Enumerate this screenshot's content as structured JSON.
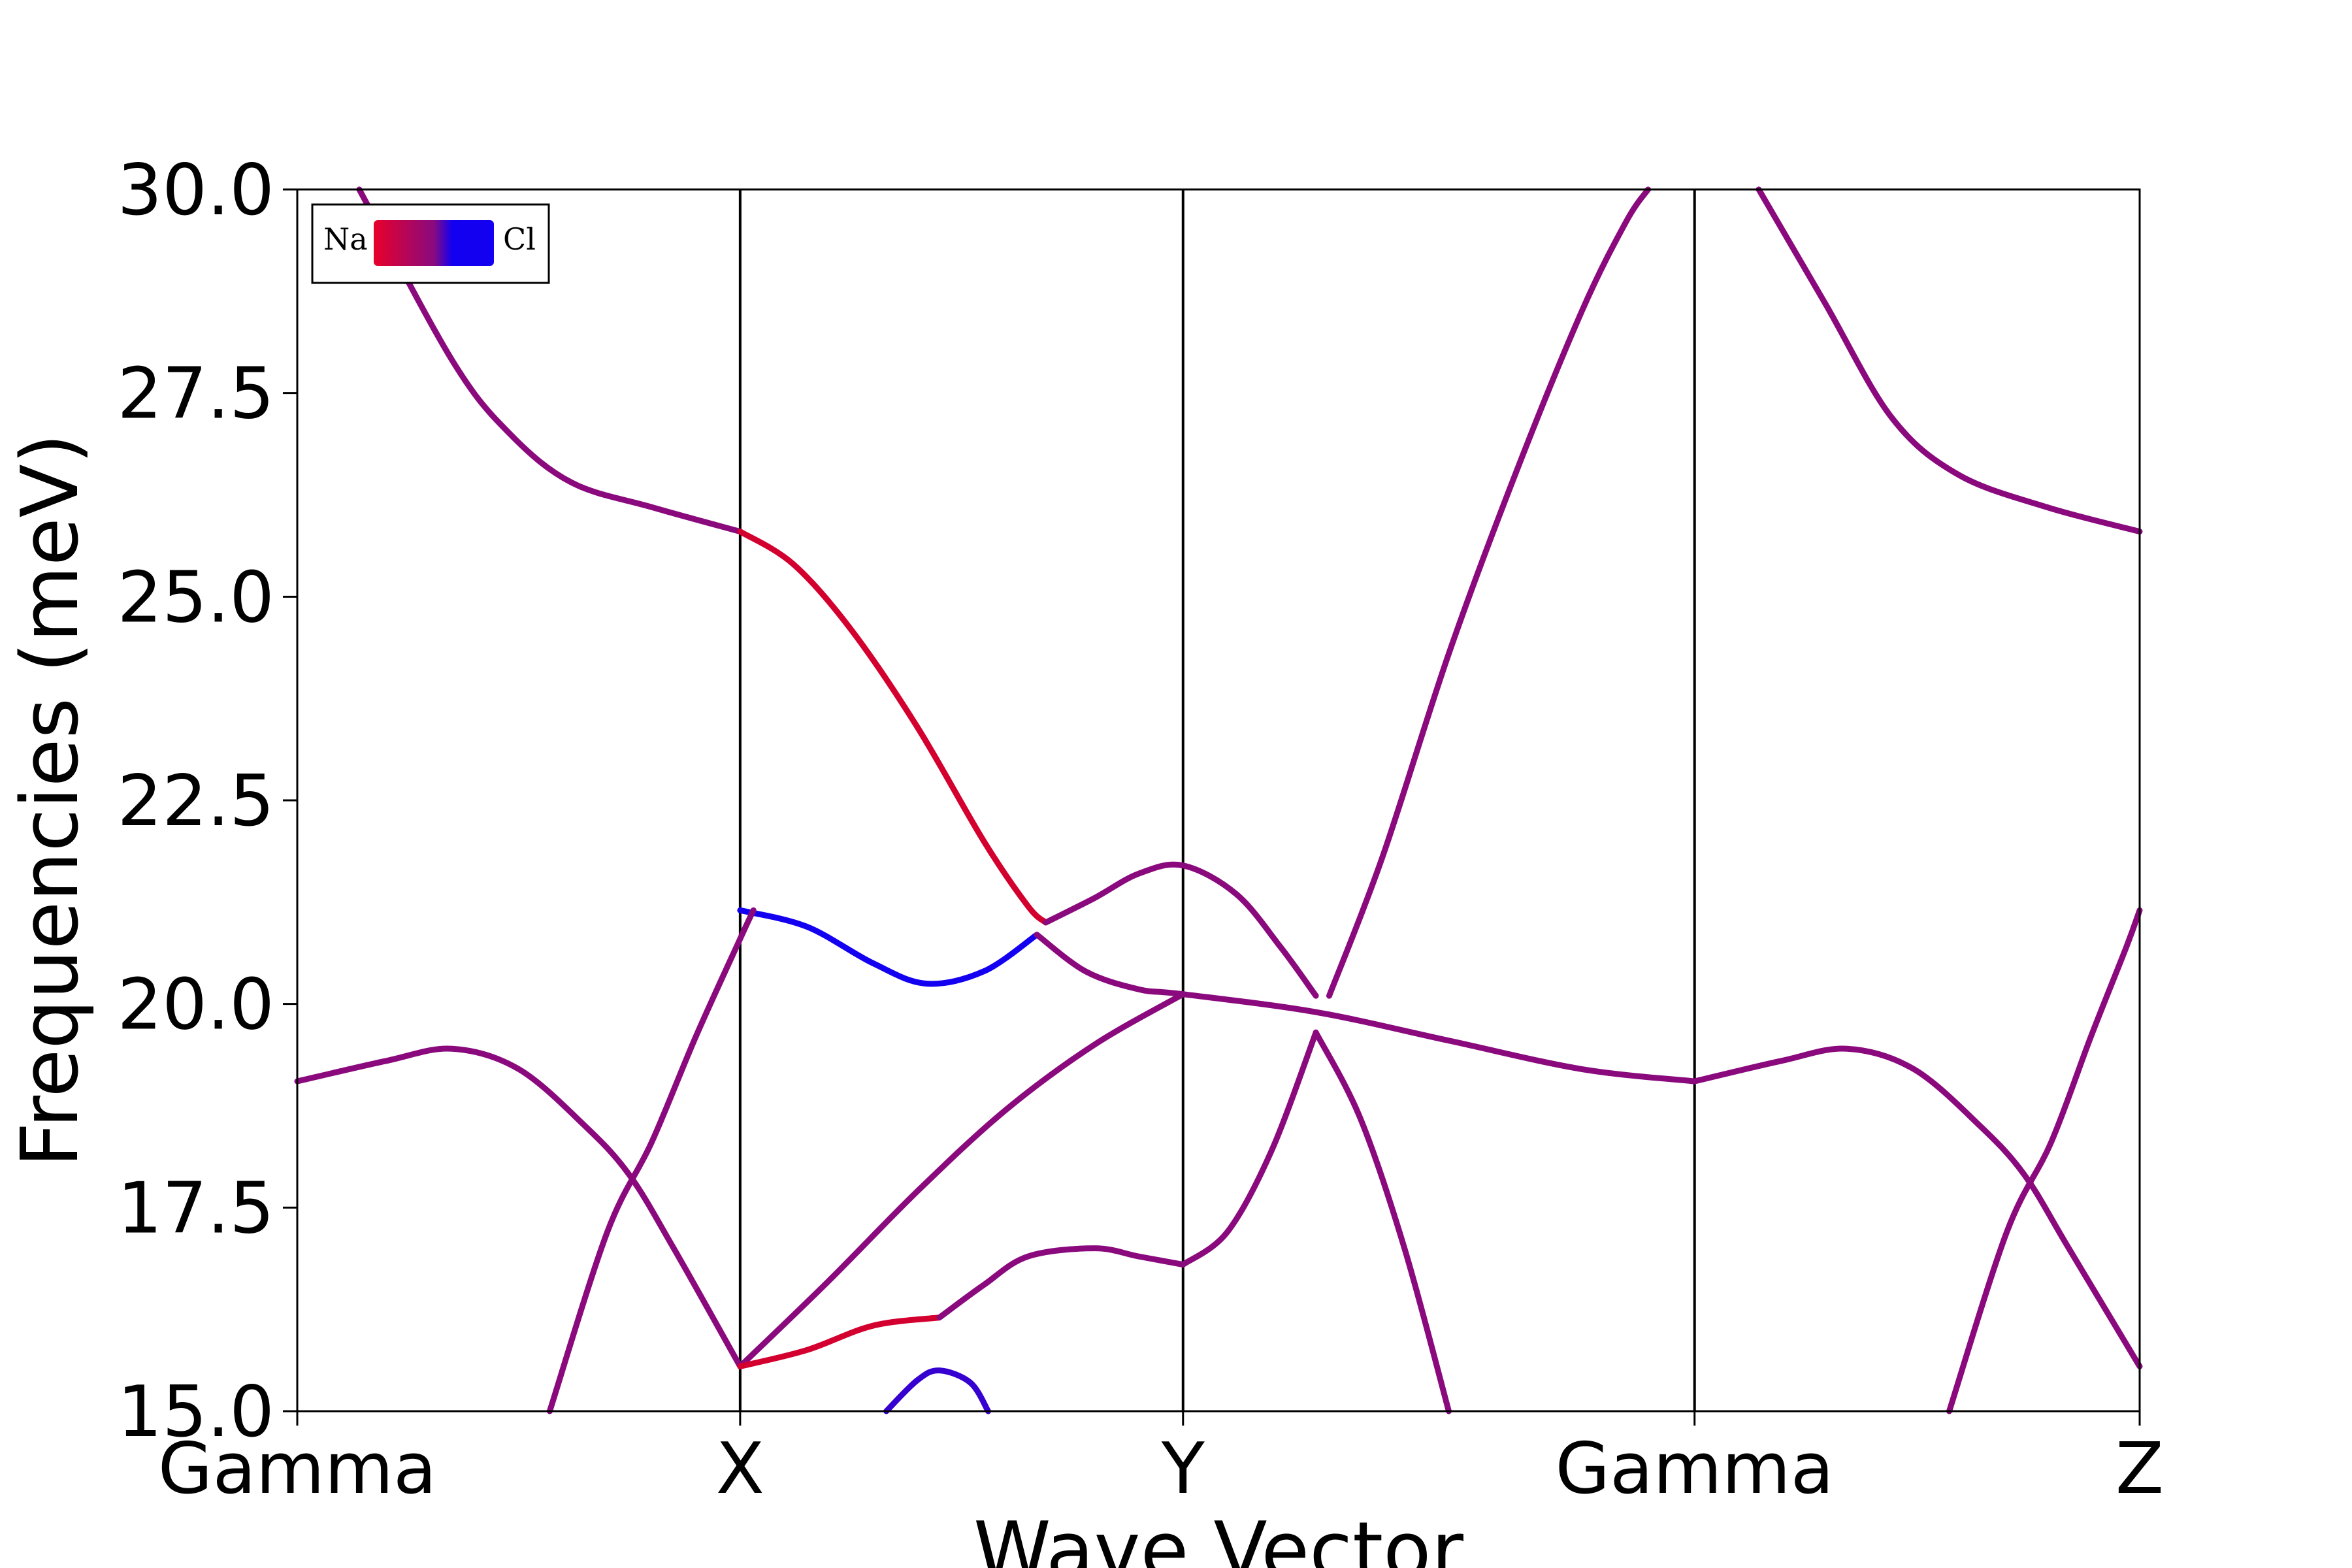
{
  "chart_data": {
    "type": "line",
    "title": "",
    "xlabel": "Wave Vector",
    "ylabel": "Frequencies (meV)",
    "ylim": [
      15.0,
      30.0
    ],
    "yticks": [
      "15.0",
      "17.5",
      "20.0",
      "22.5",
      "25.0",
      "27.5",
      "30.0"
    ],
    "yticks_values": [
      15.0,
      17.5,
      20.0,
      22.5,
      25.0,
      27.5,
      30.0
    ],
    "xlim": [
      0,
      4.16
    ],
    "xticks": [
      {
        "label": "Gamma",
        "x": 0
      },
      {
        "label": "X",
        "x": 1
      },
      {
        "label": "Y",
        "x": 2
      },
      {
        "label": "Gamma",
        "x": 3.155
      },
      {
        "label": "Z",
        "x": 4.16
      }
    ],
    "grid": false,
    "legend": {
      "placement": "top-left",
      "left_label": "Na",
      "right_label": "Cl",
      "left_color": "#e8002a",
      "mid_color": "#8a0a7e",
      "right_color": "#1400f0"
    },
    "series": [
      {
        "color": "#8a0a7e",
        "points": [
          [
            0.14,
            30.0
          ],
          [
            0.35,
            27.9
          ],
          [
            0.48,
            27.0
          ],
          [
            0.62,
            26.4
          ],
          [
            0.8,
            26.1
          ],
          [
            1.0,
            25.8
          ]
        ]
      },
      {
        "color": "#d3002f",
        "points": [
          [
            1.0,
            25.8
          ],
          [
            1.12,
            25.4
          ],
          [
            1.25,
            24.6
          ],
          [
            1.4,
            23.4
          ],
          [
            1.55,
            22.0
          ],
          [
            1.65,
            21.2
          ],
          [
            1.69,
            21.0
          ]
        ]
      },
      {
        "color": "#8a0a7e",
        "points": [
          [
            1.69,
            21.0
          ],
          [
            1.8,
            21.3
          ],
          [
            1.9,
            21.6
          ],
          [
            2.0,
            21.7
          ],
          [
            2.12,
            21.35
          ],
          [
            2.22,
            20.7
          ],
          [
            2.3,
            20.1
          ]
        ]
      },
      {
        "color": "#8a0a7e",
        "points": [
          [
            2.33,
            20.1
          ],
          [
            2.45,
            21.8
          ],
          [
            2.6,
            24.3
          ],
          [
            2.75,
            26.5
          ],
          [
            2.9,
            28.5
          ],
          [
            3.0,
            29.6
          ],
          [
            3.05,
            30.0
          ]
        ]
      },
      {
        "color": "#8a0a7e",
        "points": [
          [
            3.3,
            30.0
          ],
          [
            3.45,
            28.6
          ],
          [
            3.6,
            27.2
          ],
          [
            3.75,
            26.5
          ],
          [
            3.95,
            26.1
          ],
          [
            4.16,
            25.8
          ]
        ]
      },
      {
        "color": "#1400f0",
        "points": [
          [
            1.0,
            21.15
          ],
          [
            1.15,
            20.95
          ],
          [
            1.3,
            20.5
          ],
          [
            1.42,
            20.25
          ],
          [
            1.55,
            20.4
          ],
          [
            1.67,
            20.85
          ]
        ]
      },
      {
        "color": "#8a0a7e",
        "points": [
          [
            1.67,
            20.85
          ],
          [
            1.78,
            20.4
          ],
          [
            1.9,
            20.18
          ],
          [
            2.0,
            20.12
          ],
          [
            2.3,
            19.9
          ],
          [
            2.6,
            19.55
          ],
          [
            2.9,
            19.2
          ],
          [
            3.155,
            19.05
          ]
        ]
      },
      {
        "color": "#8a0a7e",
        "points": [
          [
            0,
            19.05
          ],
          [
            0.2,
            19.3
          ],
          [
            0.35,
            19.45
          ],
          [
            0.5,
            19.2
          ],
          [
            0.65,
            18.5
          ],
          [
            0.75,
            17.9
          ],
          [
            0.85,
            17.0
          ],
          [
            1.0,
            15.55
          ]
        ]
      },
      {
        "color": "#8a0a7e",
        "points": [
          [
            3.155,
            19.05
          ],
          [
            3.35,
            19.3
          ],
          [
            3.5,
            19.45
          ],
          [
            3.65,
            19.2
          ],
          [
            3.8,
            18.5
          ],
          [
            3.9,
            17.9
          ],
          [
            4.0,
            17.0
          ],
          [
            4.16,
            15.55
          ]
        ]
      },
      {
        "color": "#8a0a7e",
        "points": [
          [
            0.57,
            15.0
          ],
          [
            0.7,
            17.2
          ],
          [
            0.8,
            18.3
          ],
          [
            0.9,
            19.6
          ],
          [
            1.0,
            20.8
          ],
          [
            1.03,
            21.15
          ]
        ]
      },
      {
        "color": "#8a0a7e",
        "points": [
          [
            3.73,
            15.0
          ],
          [
            3.86,
            17.2
          ],
          [
            3.96,
            18.3
          ],
          [
            4.05,
            19.6
          ],
          [
            4.13,
            20.7
          ],
          [
            4.16,
            21.15
          ]
        ]
      },
      {
        "color": "#8a0a7e",
        "points": [
          [
            1.0,
            15.55
          ],
          [
            1.2,
            16.6
          ],
          [
            1.4,
            17.7
          ],
          [
            1.6,
            18.7
          ],
          [
            1.8,
            19.5
          ],
          [
            2.0,
            20.12
          ]
        ]
      },
      {
        "color": "#d3002f",
        "points": [
          [
            1.0,
            15.55
          ],
          [
            1.15,
            15.75
          ],
          [
            1.3,
            16.05
          ],
          [
            1.45,
            16.15
          ]
        ]
      },
      {
        "color": "#8a0a7e",
        "points": [
          [
            1.45,
            16.15
          ],
          [
            1.55,
            16.55
          ],
          [
            1.65,
            16.9
          ],
          [
            1.8,
            17.0
          ],
          [
            1.9,
            16.9
          ],
          [
            2.0,
            16.8
          ]
        ]
      },
      {
        "color": "#8a0a7e",
        "points": [
          [
            2.0,
            16.8
          ],
          [
            2.1,
            17.2
          ],
          [
            2.2,
            18.2
          ],
          [
            2.3,
            19.65
          ]
        ]
      },
      {
        "color": "#8a0a7e",
        "points": [
          [
            2.3,
            19.65
          ],
          [
            2.4,
            18.6
          ],
          [
            2.5,
            17.0
          ],
          [
            2.6,
            15.0
          ]
        ]
      },
      {
        "color": "#3500d0",
        "points": [
          [
            1.33,
            15.0
          ],
          [
            1.4,
            15.38
          ],
          [
            1.45,
            15.5
          ],
          [
            1.52,
            15.35
          ],
          [
            1.56,
            15.0
          ]
        ]
      }
    ]
  }
}
